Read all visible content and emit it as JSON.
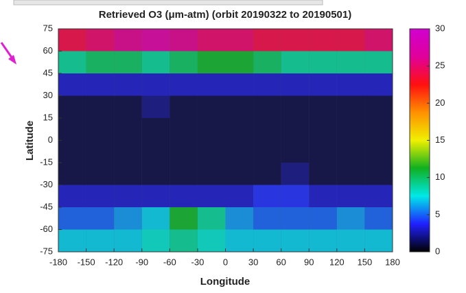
{
  "chart_data": {
    "type": "heatmap",
    "title": "Retrieved O3 (μm-atm) (orbit 20190322 to 20190501)",
    "xlabel": "Longitude",
    "ylabel": "Latitude",
    "x": [
      -165,
      -135,
      -105,
      -75,
      -45,
      -15,
      15,
      45,
      75,
      105,
      135,
      165
    ],
    "y": [
      -67.5,
      -52.5,
      -37.5,
      -22.5,
      -7.5,
      7.5,
      22.5,
      37.5,
      52.5,
      67.5
    ],
    "z": [
      [
        7,
        7,
        7,
        8,
        9,
        8,
        7,
        7,
        7,
        7,
        7,
        7
      ],
      [
        5,
        5,
        6,
        7,
        11,
        9,
        6,
        5,
        5,
        5,
        6,
        5
      ],
      [
        3,
        3,
        3,
        3,
        3,
        3,
        3,
        4,
        4,
        3,
        3,
        3
      ],
      [
        1,
        1,
        1,
        1,
        1,
        1,
        1,
        1,
        2,
        1,
        1,
        1
      ],
      [
        1,
        1,
        1,
        1,
        1,
        1,
        1,
        1,
        1,
        1,
        1,
        1
      ],
      [
        1,
        1,
        1,
        1,
        1,
        1,
        1,
        1,
        1,
        1,
        1,
        1
      ],
      [
        1,
        1,
        1,
        2,
        1,
        1,
        1,
        1,
        1,
        1,
        1,
        1
      ],
      [
        3,
        3,
        3,
        3,
        3,
        3,
        3,
        3,
        3,
        3,
        3,
        3
      ],
      [
        9,
        10,
        10,
        9,
        10,
        11,
        11,
        10,
        9,
        9,
        9,
        9
      ],
      [
        24,
        25,
        26,
        27,
        26,
        25,
        25,
        24,
        24,
        24,
        24,
        25
      ]
    ],
    "xlim": [
      -180,
      180
    ],
    "xticks": [
      -180,
      -150,
      -120,
      -90,
      -60,
      -30,
      0,
      30,
      60,
      90,
      120,
      150,
      180
    ],
    "ylim": [
      -75,
      75
    ],
    "yticks": [
      -75,
      -60,
      -45,
      -30,
      -15,
      0,
      15,
      30,
      45,
      60,
      75
    ],
    "clim": [
      0,
      30
    ],
    "cticks": [
      0,
      5,
      10,
      15,
      20,
      25,
      30
    ],
    "colormap": [
      "#000000",
      "#2020ff",
      "#00e8e8",
      "#10b020",
      "#f0f000",
      "#ff9000",
      "#ff1010",
      "#e0009a",
      "#d000d0"
    ]
  }
}
